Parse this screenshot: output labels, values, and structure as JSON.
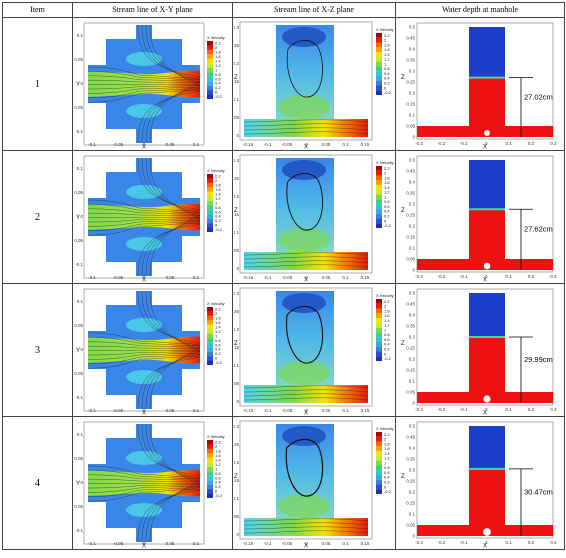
{
  "table": {
    "headers": [
      "Item",
      "Stream line of X-Y plane",
      "Stream line of X-Z plane",
      "Water depth at manhole"
    ],
    "rows": [
      {
        "item": "1",
        "depth": "27.02cm",
        "depth_value": 0.27
      },
      {
        "item": "2",
        "depth": "27.62cm",
        "depth_value": 0.276
      },
      {
        "item": "3",
        "depth": "29.99cm",
        "depth_value": 0.3
      },
      {
        "item": "4",
        "depth": "30.47cm",
        "depth_value": 0.305
      }
    ]
  },
  "plots": {
    "xy": {
      "xlabel": "X",
      "ylabel": "Y",
      "xticks": [
        "-0.1",
        "-0.05",
        "0",
        "0.05",
        "0.1"
      ],
      "yticks": [
        "0.1",
        "0.05",
        "0",
        "-0.05",
        "-0.1"
      ],
      "legend_title": "X Velocity",
      "legend_values": [
        "2.2",
        "2",
        "1.8",
        "1.6",
        "1.4",
        "1.2",
        "1",
        "0.8",
        "0.6",
        "0.4",
        "0.2",
        "0",
        "-0.2"
      ]
    },
    "xz": {
      "xlabel": "X",
      "ylabel": "Z",
      "xticks": [
        "-0.15",
        "-0.1",
        "-0.05",
        "0",
        "0.05",
        "0.1",
        "0.15"
      ],
      "zticks": [
        "0.3",
        "0.25",
        "0.2",
        "0.15",
        "0.1",
        "0.05",
        "0"
      ],
      "legend_title": "X Velocity",
      "legend_values": [
        "2.2",
        "2",
        "1.8",
        "1.6",
        "1.4",
        "1.2",
        "1",
        "0.8",
        "0.6",
        "0.4",
        "0.2",
        "0",
        "-0.2"
      ]
    },
    "depth": {
      "xlabel": "X",
      "ylabel": "Z",
      "xticks": [
        "-0.3",
        "-0.2",
        "-0.1",
        "0",
        "0.1",
        "0.2",
        "0.3"
      ],
      "zticks": [
        "0.5",
        "0.45",
        "0.4",
        "0.35",
        "0.3",
        "0.25",
        "0.2",
        "0.15",
        "0.1",
        "0.05",
        "0"
      ]
    }
  },
  "colors": {
    "water": "#ee1111",
    "air": "#1a3fcc",
    "background_blue": "#3a86e8",
    "jet_red": "#e81a0a",
    "jet_yellow": "#f5e300",
    "jet_green": "#7fd84a",
    "jet_cyan": "#4fd6e6"
  }
}
